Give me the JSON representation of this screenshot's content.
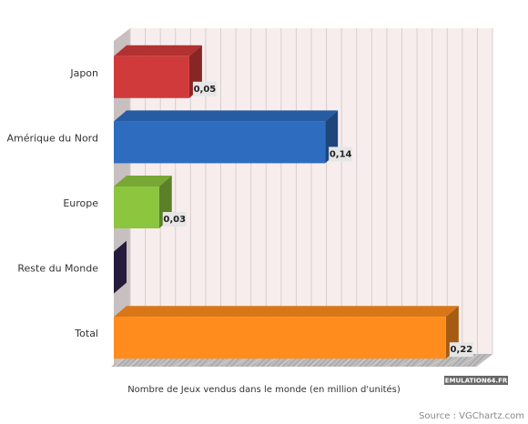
{
  "chart_data": {
    "type": "bar3d_horizontal",
    "categories": [
      "Japon",
      "Amérique du Nord",
      "Europe",
      "Reste du Monde",
      "Total"
    ],
    "values": [
      0.05,
      0.14,
      0.03,
      0,
      0.22
    ],
    "value_labels": [
      "0,05",
      "0,14",
      "0,03",
      null,
      "0,22"
    ],
    "colors": [
      "#d13a3a",
      "#2e6cc0",
      "#8cc63e",
      "#3b2a5c",
      "#ff8c1c"
    ],
    "xlabel": "Nombre de Jeux vendus dans le monde (en million d'unités)",
    "xlim": [
      0,
      0.24
    ],
    "xticks": [
      0,
      0.01,
      0.02,
      0.03,
      0.04,
      0.05,
      0.06,
      0.07,
      0.08,
      0.09,
      0.1,
      0.11,
      0.12,
      0.13,
      0.14,
      0.15,
      0.16,
      0.17,
      0.18,
      0.19,
      0.2,
      0.21,
      0.22,
      0.23,
      0.24
    ],
    "grid": true,
    "watermark": "EMULATION64.FR",
    "source": "Source : VGChartz.com"
  }
}
